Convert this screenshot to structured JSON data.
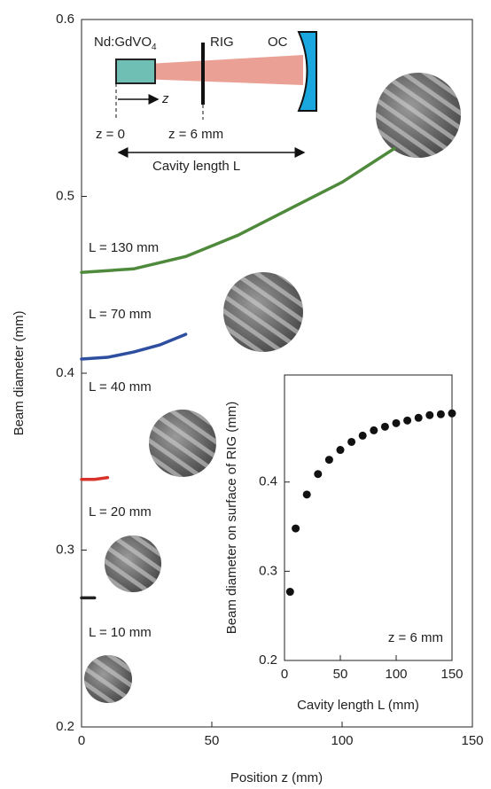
{
  "chart_data": [
    {
      "type": "line",
      "x_label": "Position z (mm)",
      "y_label": "Beam diameter (mm)",
      "xlim": [
        0,
        150
      ],
      "xticks": [
        0,
        50,
        100,
        150
      ],
      "ylim": [
        0.2,
        0.6
      ],
      "yticks": [
        0.2,
        0.3,
        0.4,
        0.5,
        0.6
      ],
      "series": [
        {
          "color": "#4f8a3c",
          "x": [
            0,
            20,
            40,
            60,
            80,
            100,
            120
          ],
          "values": [
            0.457,
            0.459,
            0.466,
            0.478,
            0.493,
            0.508,
            0.527
          ]
        },
        {
          "color": "#2e4fa0",
          "x": [
            0,
            10,
            20,
            30,
            40
          ],
          "values": [
            0.408,
            0.409,
            0.412,
            0.416,
            0.422
          ]
        },
        {
          "color": "#d8322a",
          "x": [
            0,
            5,
            10
          ],
          "values": [
            0.34,
            0.34,
            0.341
          ]
        },
        {
          "color": "#222222",
          "x": [
            0,
            5
          ],
          "values": [
            0.273,
            0.273
          ]
        }
      ],
      "annotations": [
        "L = 130 mm",
        "L = 70 mm",
        "L = 40 mm",
        "L = 20 mm",
        "L = 10 mm"
      ],
      "schematic_labels": {
        "crystal": "Nd:GdVO",
        "crystal_subscript": "4",
        "rig": "RIG",
        "oc": "OC",
        "axis": "z",
        "z0": "z = 0",
        "z6": "z = 6 mm",
        "cavity": "Cavity length L"
      }
    },
    {
      "type": "scatter",
      "x_label": "Cavity length L (mm)",
      "y_label": "Beam diameter on surface of RIG (mm)",
      "annotation": "z = 6 mm",
      "xlim": [
        0,
        150
      ],
      "xticks": [
        0,
        50,
        100,
        150
      ],
      "ylim": [
        0.2,
        0.52
      ],
      "yticks": [
        0.2,
        0.3,
        0.4
      ],
      "color": "#111111",
      "x": [
        5,
        10,
        20,
        30,
        40,
        50,
        60,
        70,
        80,
        90,
        100,
        110,
        120,
        130,
        140,
        150
      ],
      "values": [
        0.277,
        0.348,
        0.386,
        0.409,
        0.425,
        0.436,
        0.445,
        0.452,
        0.458,
        0.462,
        0.466,
        0.469,
        0.472,
        0.475,
        0.476,
        0.477
      ]
    }
  ]
}
